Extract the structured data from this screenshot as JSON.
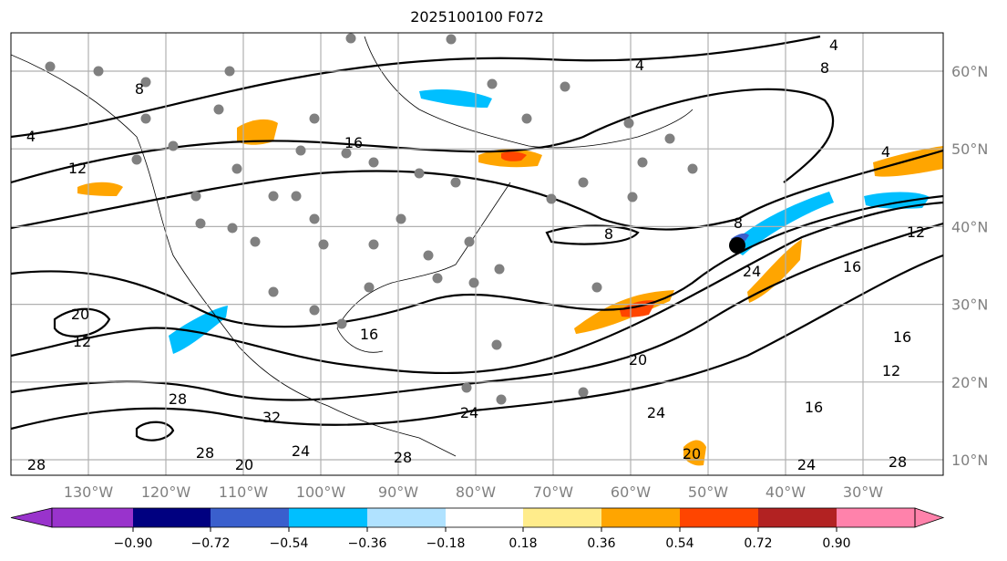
{
  "title": "2025100100 F072",
  "lon_labels": [
    "130°W",
    "120°W",
    "110°W",
    "100°W",
    "90°W",
    "80°W",
    "70°W",
    "60°W",
    "50°W",
    "40°W",
    "30°W"
  ],
  "lat_labels": [
    "60°N",
    "50°N",
    "40°N",
    "30°N",
    "20°N",
    "10°N"
  ],
  "contour_labels": [
    "4",
    "8",
    "12",
    "16",
    "20",
    "24",
    "28",
    "32"
  ],
  "colorbar": {
    "ticks": [
      "−0.90",
      "−0.72",
      "−0.54",
      "−0.36",
      "−0.18",
      "0.18",
      "0.36",
      "0.54",
      "0.72",
      "0.90"
    ],
    "colors": [
      "#9933cc",
      "#000080",
      "#3a5fcd",
      "#00bfff",
      "#b0e2ff",
      "#ffffff",
      "#ffec8b",
      "#ffa500",
      "#ff4500",
      "#b22222",
      "#ff82ab"
    ]
  }
}
